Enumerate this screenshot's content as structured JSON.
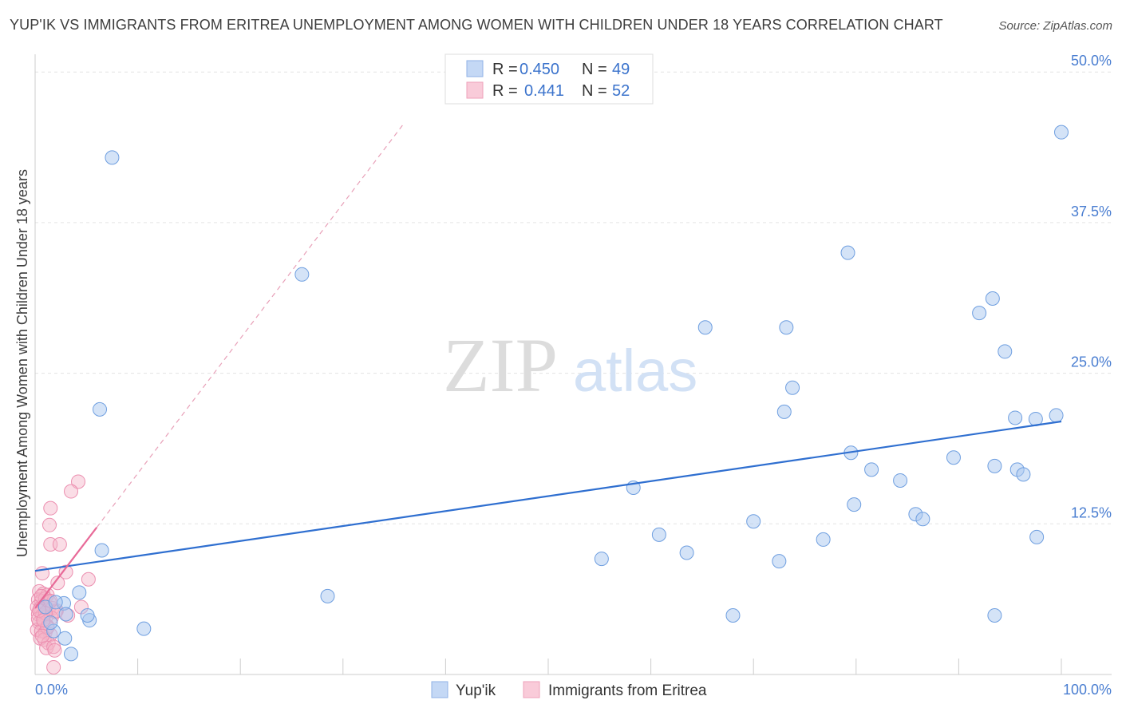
{
  "title": "YUP'IK VS IMMIGRANTS FROM ERITREA UNEMPLOYMENT AMONG WOMEN WITH CHILDREN UNDER 18 YEARS CORRELATION CHART",
  "source": "Source: ZipAtlas.com",
  "watermark": {
    "zip": "ZIP",
    "atlas": "atlas"
  },
  "chart_data": {
    "type": "scatter",
    "title": "YUP'IK VS IMMIGRANTS FROM ERITREA UNEMPLOYMENT AMONG WOMEN WITH CHILDREN UNDER 18 YEARS CORRELATION CHART",
    "xlabel": "",
    "ylabel": "Unemployment Among Women with Children Under 18 years",
    "xlim": [
      0,
      100
    ],
    "ylim": [
      0,
      52
    ],
    "x_tick_labels": [
      "0.0%",
      "100.0%"
    ],
    "y_ticks": [
      12.5,
      25.0,
      37.5,
      50.0
    ],
    "y_tick_labels": [
      "12.5%",
      "25.0%",
      "37.5%",
      "50.0%"
    ],
    "grid": true,
    "legend_position": "top-center",
    "series": [
      {
        "name": "Yup'ik",
        "color": "#a9c7f0",
        "line_color": "#2f6fd0",
        "r": "0.450",
        "n": "49",
        "trend": {
          "x": [
            0,
            100
          ],
          "y": [
            8.6,
            21.0
          ],
          "style": "solid"
        },
        "points": [
          {
            "x": 7.5,
            "y": 42.9
          },
          {
            "x": 1.8,
            "y": 3.6
          },
          {
            "x": 2.9,
            "y": 3.0
          },
          {
            "x": 5.3,
            "y": 4.5
          },
          {
            "x": 6.3,
            "y": 22.0
          },
          {
            "x": 6.5,
            "y": 10.3
          },
          {
            "x": 2.8,
            "y": 5.9
          },
          {
            "x": 3.5,
            "y": 1.7
          },
          {
            "x": 4.3,
            "y": 6.8
          },
          {
            "x": 1.0,
            "y": 5.6
          },
          {
            "x": 5.1,
            "y": 4.9
          },
          {
            "x": 10.6,
            "y": 3.8
          },
          {
            "x": 26.0,
            "y": 33.2
          },
          {
            "x": 28.5,
            "y": 6.5
          },
          {
            "x": 58.3,
            "y": 15.5
          },
          {
            "x": 55.2,
            "y": 9.6
          },
          {
            "x": 60.8,
            "y": 11.6
          },
          {
            "x": 63.5,
            "y": 10.1
          },
          {
            "x": 65.3,
            "y": 28.8
          },
          {
            "x": 68.0,
            "y": 4.9
          },
          {
            "x": 70.0,
            "y": 12.7
          },
          {
            "x": 72.5,
            "y": 9.4
          },
          {
            "x": 73.2,
            "y": 28.8
          },
          {
            "x": 73.0,
            "y": 21.8
          },
          {
            "x": 73.8,
            "y": 23.8
          },
          {
            "x": 76.8,
            "y": 11.2
          },
          {
            "x": 79.2,
            "y": 35.0
          },
          {
            "x": 79.5,
            "y": 18.4
          },
          {
            "x": 79.8,
            "y": 14.1
          },
          {
            "x": 81.5,
            "y": 17.0
          },
          {
            "x": 84.3,
            "y": 16.1
          },
          {
            "x": 85.8,
            "y": 13.3
          },
          {
            "x": 86.5,
            "y": 12.9
          },
          {
            "x": 89.5,
            "y": 18.0
          },
          {
            "x": 92.0,
            "y": 30.0
          },
          {
            "x": 93.5,
            "y": 17.3
          },
          {
            "x": 93.3,
            "y": 31.2
          },
          {
            "x": 94.5,
            "y": 26.8
          },
          {
            "x": 95.5,
            "y": 21.3
          },
          {
            "x": 95.7,
            "y": 17.0
          },
          {
            "x": 96.3,
            "y": 16.6
          },
          {
            "x": 97.5,
            "y": 21.2
          },
          {
            "x": 97.6,
            "y": 11.4
          },
          {
            "x": 99.5,
            "y": 21.5
          },
          {
            "x": 100.0,
            "y": 45.0
          },
          {
            "x": 93.5,
            "y": 4.9
          },
          {
            "x": 1.5,
            "y": 4.3
          },
          {
            "x": 3.0,
            "y": 5.0
          },
          {
            "x": 2.0,
            "y": 6.0
          }
        ]
      },
      {
        "name": "Immigrants from Eritrea",
        "color": "#f5b4c8",
        "line_color": "#e86a98",
        "r": "0.441",
        "n": "52",
        "trend": {
          "x": [
            0,
            6.0
          ],
          "y": [
            5.5,
            12.2
          ],
          "style": "solid"
        },
        "trend_extension": {
          "x": [
            6.0,
            36.0
          ],
          "y": [
            12.2,
            45.8
          ],
          "style": "dashed"
        },
        "points": [
          {
            "x": 4.2,
            "y": 16.0
          },
          {
            "x": 3.5,
            "y": 15.2
          },
          {
            "x": 1.5,
            "y": 13.8
          },
          {
            "x": 1.4,
            "y": 12.4
          },
          {
            "x": 1.5,
            "y": 10.8
          },
          {
            "x": 2.4,
            "y": 10.8
          },
          {
            "x": 0.7,
            "y": 8.4
          },
          {
            "x": 3.0,
            "y": 8.5
          },
          {
            "x": 2.2,
            "y": 7.6
          },
          {
            "x": 5.2,
            "y": 7.9
          },
          {
            "x": 0.4,
            "y": 6.9
          },
          {
            "x": 0.8,
            "y": 6.7
          },
          {
            "x": 1.2,
            "y": 6.6
          },
          {
            "x": 0.3,
            "y": 6.2
          },
          {
            "x": 0.6,
            "y": 6.1
          },
          {
            "x": 1.0,
            "y": 6.3
          },
          {
            "x": 1.4,
            "y": 6.0
          },
          {
            "x": 0.2,
            "y": 5.6
          },
          {
            "x": 0.5,
            "y": 5.5
          },
          {
            "x": 0.9,
            "y": 5.7
          },
          {
            "x": 1.3,
            "y": 5.4
          },
          {
            "x": 1.7,
            "y": 5.5
          },
          {
            "x": 2.1,
            "y": 5.3
          },
          {
            "x": 4.5,
            "y": 5.6
          },
          {
            "x": 0.3,
            "y": 5.0
          },
          {
            "x": 0.7,
            "y": 4.9
          },
          {
            "x": 1.1,
            "y": 4.8
          },
          {
            "x": 1.6,
            "y": 4.7
          },
          {
            "x": 3.2,
            "y": 4.9
          },
          {
            "x": 0.4,
            "y": 4.3
          },
          {
            "x": 0.8,
            "y": 4.2
          },
          {
            "x": 1.2,
            "y": 4.0
          },
          {
            "x": 0.2,
            "y": 3.7
          },
          {
            "x": 0.6,
            "y": 3.6
          },
          {
            "x": 1.0,
            "y": 3.5
          },
          {
            "x": 1.5,
            "y": 3.3
          },
          {
            "x": 0.5,
            "y": 3.0
          },
          {
            "x": 0.9,
            "y": 2.9
          },
          {
            "x": 1.3,
            "y": 2.6
          },
          {
            "x": 1.1,
            "y": 2.2
          },
          {
            "x": 1.8,
            "y": 2.3
          },
          {
            "x": 1.9,
            "y": 2.0
          },
          {
            "x": 1.8,
            "y": 0.6
          },
          {
            "x": 2.0,
            "y": 5.2
          },
          {
            "x": 0.3,
            "y": 4.6
          },
          {
            "x": 0.6,
            "y": 6.5
          },
          {
            "x": 1.0,
            "y": 5.1
          },
          {
            "x": 0.4,
            "y": 5.3
          },
          {
            "x": 1.2,
            "y": 3.9
          },
          {
            "x": 0.8,
            "y": 4.5
          },
          {
            "x": 1.5,
            "y": 6.1
          },
          {
            "x": 0.7,
            "y": 3.2
          }
        ]
      }
    ]
  }
}
